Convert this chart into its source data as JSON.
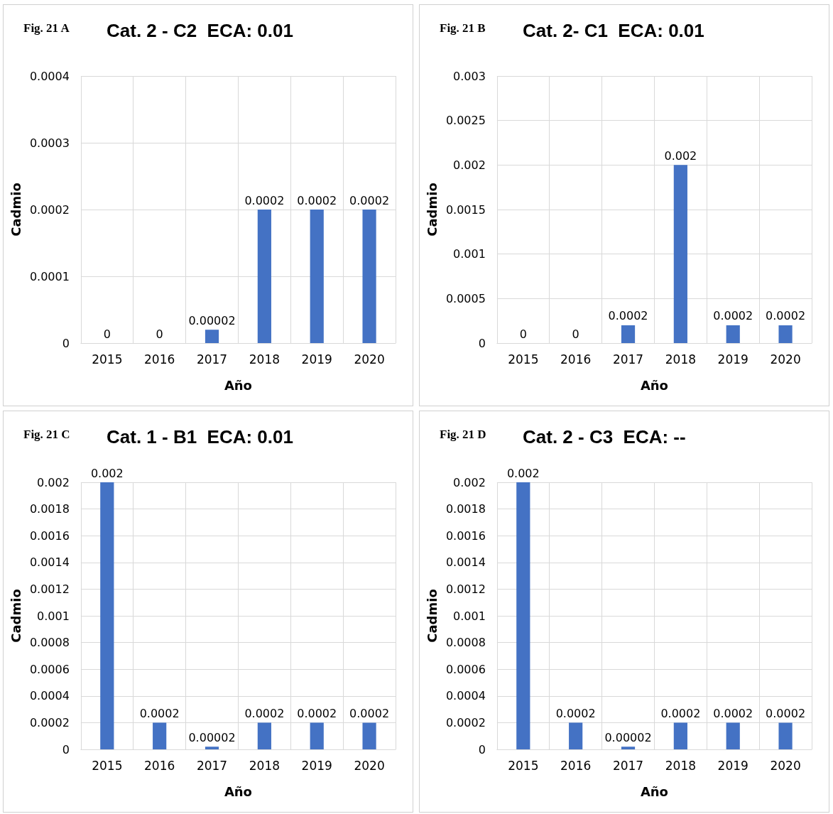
{
  "chart_data": [
    {
      "type": "bar",
      "title": "Cat. 2 - C2  ECA: 0.01",
      "annotations": [
        "Fig. 21 A"
      ],
      "xlabel": "Año",
      "ylabel": "Cadmio",
      "categories": [
        "2015",
        "2016",
        "2017",
        "2018",
        "2019",
        "2020"
      ],
      "values": [
        0,
        0,
        2e-05,
        0.0002,
        0.0002,
        0.0002
      ],
      "value_labels": [
        "0",
        "0",
        "0.00002",
        "0.0002",
        "0.0002",
        "0.0002"
      ],
      "color": "#4472c4",
      "ylim": [
        0,
        0.0004
      ],
      "yticks": [
        0,
        0.0001,
        0.0002,
        0.0003,
        0.0004
      ],
      "grid": true
    },
    {
      "type": "bar",
      "title": "Cat. 2- C1  ECA: 0.01",
      "annotations": [
        "Fig. 21 B"
      ],
      "xlabel": "Año",
      "ylabel": "Cadmio",
      "categories": [
        "2015",
        "2016",
        "2017",
        "2018",
        "2019",
        "2020"
      ],
      "values": [
        0,
        0,
        0.0002,
        0.002,
        0.0002,
        0.0002
      ],
      "value_labels": [
        "0",
        "0",
        "0.0002",
        "0.002",
        "0.0002",
        "0.0002"
      ],
      "color": "#4472c4",
      "ylim": [
        0,
        0.003
      ],
      "yticks": [
        0,
        0.0005,
        0.001,
        0.0015,
        0.002,
        0.0025,
        0.003
      ],
      "grid": true
    },
    {
      "type": "bar",
      "title": "Cat. 1 - B1  ECA: 0.01",
      "annotations": [
        "Fig. 21 C"
      ],
      "xlabel": "Año",
      "ylabel": "Cadmio",
      "categories": [
        "2015",
        "2016",
        "2017",
        "2018",
        "2019",
        "2020"
      ],
      "values": [
        0.002,
        0.0002,
        2e-05,
        0.0002,
        0.0002,
        0.0002
      ],
      "value_labels": [
        "0.002",
        "0.0002",
        "0.00002",
        "0.0002",
        "0.0002",
        "0.0002"
      ],
      "color": "#4472c4",
      "ylim": [
        0,
        0.002
      ],
      "yticks": [
        0,
        0.0002,
        0.0004,
        0.0006,
        0.0008,
        0.001,
        0.0012,
        0.0014,
        0.0016,
        0.0018,
        0.002
      ],
      "grid": true
    },
    {
      "type": "bar",
      "title": "Cat. 2 - C3  ECA: --",
      "annotations": [
        "Fig. 21 D"
      ],
      "xlabel": "Año",
      "ylabel": "Cadmio",
      "categories": [
        "2015",
        "2016",
        "2017",
        "2018",
        "2019",
        "2020"
      ],
      "values": [
        0.002,
        0.0002,
        2e-05,
        0.0002,
        0.0002,
        0.0002
      ],
      "value_labels": [
        "0.002",
        "0.0002",
        "0.00002",
        "0.0002",
        "0.0002",
        "0.0002"
      ],
      "color": "#4472c4",
      "ylim": [
        0,
        0.002
      ],
      "yticks": [
        0,
        0.0002,
        0.0004,
        0.0006,
        0.0008,
        0.001,
        0.0012,
        0.0014,
        0.0016,
        0.0018,
        0.002
      ],
      "grid": true
    }
  ]
}
